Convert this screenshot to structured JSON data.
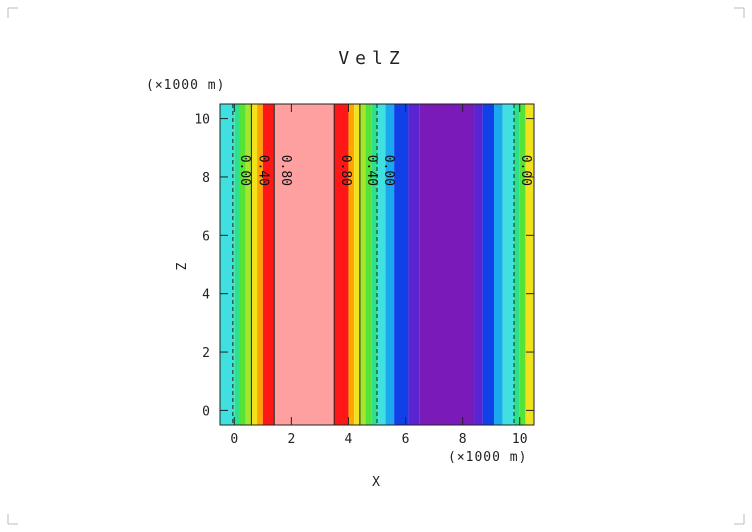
{
  "chart_data": {
    "type": "heatmap",
    "title": "VelZ",
    "xlabel": "X",
    "ylabel": "Z",
    "x_unit": "(×1000 m)",
    "y_unit": "(×1000 m)",
    "xlim": [
      -0.5,
      10.5
    ],
    "ylim": [
      -0.5,
      10.5
    ],
    "xticks": [
      "0",
      "2",
      "4",
      "6",
      "8",
      "10"
    ],
    "yticks": [
      "0",
      "2",
      "4",
      "6",
      "8",
      "10"
    ],
    "grid": false,
    "bands": [
      {
        "x0": -0.5,
        "x1": 0.0,
        "color": "#40e0e0"
      },
      {
        "x0": 0.0,
        "x1": 0.2,
        "color": "#2ee08e"
      },
      {
        "x0": 0.2,
        "x1": 0.4,
        "color": "#55e33a"
      },
      {
        "x0": 0.4,
        "x1": 0.6,
        "color": "#a6e52e"
      },
      {
        "x0": 0.6,
        "x1": 0.8,
        "color": "#f2e21e"
      },
      {
        "x0": 0.8,
        "x1": 1.0,
        "color": "#ffa400"
      },
      {
        "x0": 1.0,
        "x1": 1.4,
        "color": "#ff1616"
      },
      {
        "x0": 1.4,
        "x1": 3.5,
        "color": "#ffa0a0"
      },
      {
        "x0": 3.5,
        "x1": 4.0,
        "color": "#ff1616"
      },
      {
        "x0": 4.0,
        "x1": 4.2,
        "color": "#ffa400"
      },
      {
        "x0": 4.2,
        "x1": 4.4,
        "color": "#f2e21e"
      },
      {
        "x0": 4.4,
        "x1": 4.6,
        "color": "#a6e52e"
      },
      {
        "x0": 4.6,
        "x1": 4.8,
        "color": "#55e33a"
      },
      {
        "x0": 4.8,
        "x1": 5.0,
        "color": "#2ee08e"
      },
      {
        "x0": 5.0,
        "x1": 5.3,
        "color": "#40e0e0"
      },
      {
        "x0": 5.3,
        "x1": 5.6,
        "color": "#1aa8ee"
      },
      {
        "x0": 5.6,
        "x1": 6.1,
        "color": "#1040e8"
      },
      {
        "x0": 6.1,
        "x1": 6.5,
        "color": "#5a24d2"
      },
      {
        "x0": 6.5,
        "x1": 8.4,
        "color": "#7a1ab8"
      },
      {
        "x0": 8.4,
        "x1": 8.7,
        "color": "#5a24d2"
      },
      {
        "x0": 8.7,
        "x1": 9.1,
        "color": "#1040e8"
      },
      {
        "x0": 9.1,
        "x1": 9.4,
        "color": "#1aa8ee"
      },
      {
        "x0": 9.4,
        "x1": 9.8,
        "color": "#40e0e0"
      },
      {
        "x0": 9.8,
        "x1": 10.0,
        "color": "#2ee08e"
      },
      {
        "x0": 10.0,
        "x1": 10.2,
        "color": "#55e33a"
      },
      {
        "x0": 10.2,
        "x1": 10.5,
        "color": "#f2e21e"
      }
    ],
    "contours": [
      {
        "x": -0.05,
        "label": "0.00",
        "dashed": true
      },
      {
        "x": 0.6,
        "label": "0.40",
        "dashed": false
      },
      {
        "x": 1.4,
        "label": "0.80",
        "dashed": false
      },
      {
        "x": 3.5,
        "label": "0.80",
        "dashed": false
      },
      {
        "x": 4.4,
        "label": "0.40",
        "dashed": false
      },
      {
        "x": 5.0,
        "label": "0.00",
        "dashed": true
      },
      {
        "x": 9.8,
        "label": "0.00",
        "dashed": true
      }
    ],
    "contour_label_y": 8.5
  }
}
